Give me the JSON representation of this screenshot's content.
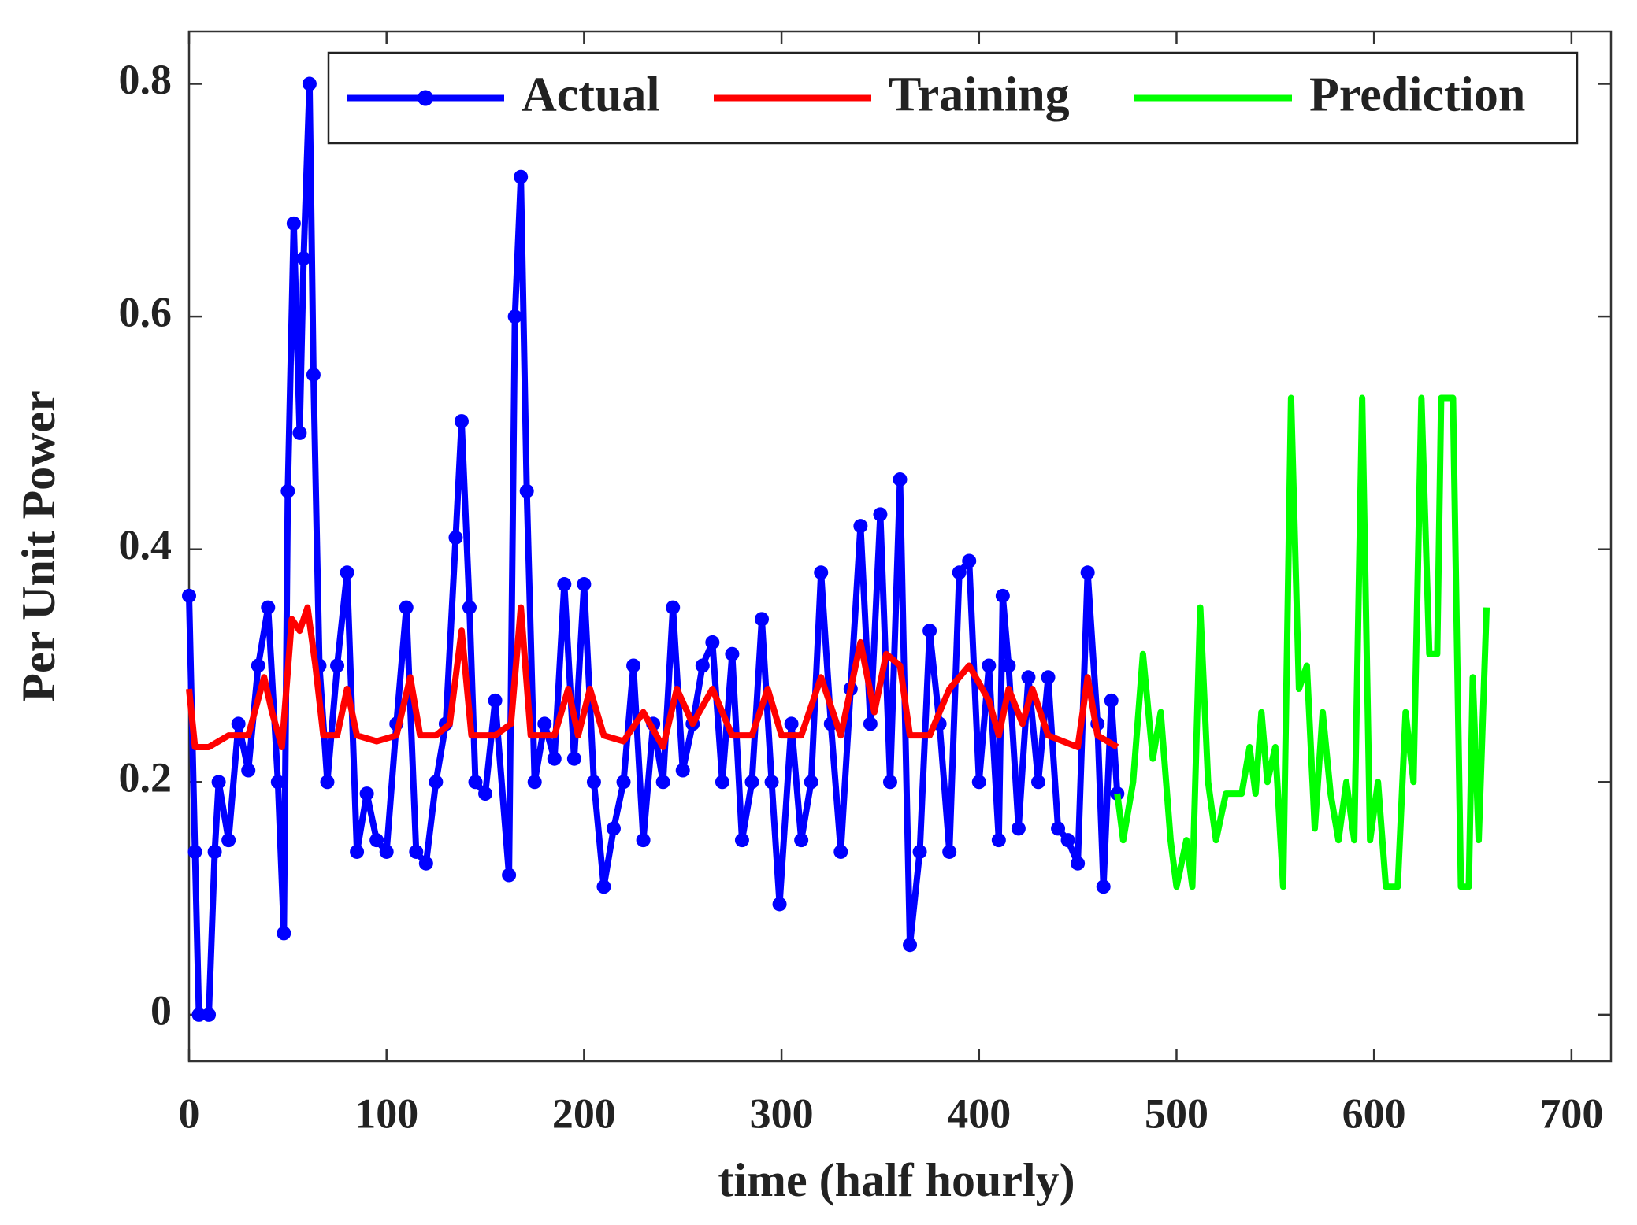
{
  "chart_data": {
    "type": "line",
    "xlabel": "time (half hourly)",
    "ylabel": "Per Unit Power",
    "xlim": [
      0,
      720
    ],
    "ylim": [
      -0.04,
      0.845
    ],
    "xticks": [
      0,
      100,
      200,
      300,
      400,
      500,
      600,
      700
    ],
    "yticks": [
      0,
      0.2,
      0.4,
      0.6,
      0.8
    ],
    "legend": "upper right",
    "series": [
      {
        "name": "Actual",
        "color": "#0000ff",
        "marker": "circle",
        "x": [
          0,
          3,
          5,
          10,
          13,
          15,
          20,
          25,
          30,
          35,
          40,
          45,
          48,
          50,
          53,
          56,
          58,
          61,
          63,
          66,
          70,
          75,
          80,
          85,
          90,
          95,
          100,
          105,
          110,
          115,
          120,
          125,
          130,
          135,
          138,
          142,
          145,
          150,
          155,
          162,
          165,
          168,
          171,
          175,
          180,
          185,
          190,
          195,
          200,
          205,
          210,
          215,
          220,
          225,
          230,
          235,
          240,
          245,
          250,
          255,
          260,
          265,
          270,
          275,
          280,
          285,
          290,
          295,
          299,
          305,
          310,
          315,
          320,
          325,
          330,
          335,
          340,
          345,
          350,
          355,
          360,
          365,
          370,
          375,
          380,
          385,
          390,
          395,
          400,
          405,
          410,
          412,
          415,
          420,
          425,
          430,
          435,
          440,
          445,
          450,
          455,
          460,
          463,
          467,
          470
        ],
        "values": [
          0.36,
          0.14,
          0.0,
          0.0,
          0.14,
          0.2,
          0.15,
          0.25,
          0.21,
          0.3,
          0.35,
          0.2,
          0.07,
          0.45,
          0.68,
          0.5,
          0.65,
          0.8,
          0.55,
          0.3,
          0.2,
          0.3,
          0.38,
          0.14,
          0.19,
          0.15,
          0.14,
          0.25,
          0.35,
          0.14,
          0.13,
          0.2,
          0.25,
          0.41,
          0.51,
          0.35,
          0.2,
          0.19,
          0.27,
          0.12,
          0.6,
          0.72,
          0.45,
          0.2,
          0.25,
          0.22,
          0.37,
          0.22,
          0.37,
          0.2,
          0.11,
          0.16,
          0.2,
          0.3,
          0.15,
          0.25,
          0.2,
          0.35,
          0.21,
          0.25,
          0.3,
          0.32,
          0.2,
          0.31,
          0.15,
          0.2,
          0.34,
          0.2,
          0.095,
          0.25,
          0.15,
          0.2,
          0.38,
          0.25,
          0.14,
          0.28,
          0.42,
          0.25,
          0.43,
          0.2,
          0.46,
          0.06,
          0.14,
          0.33,
          0.25,
          0.14,
          0.38,
          0.39,
          0.2,
          0.3,
          0.15,
          0.36,
          0.3,
          0.16,
          0.29,
          0.2,
          0.29,
          0.16,
          0.15,
          0.13,
          0.38,
          0.25,
          0.11,
          0.27,
          0.19
        ]
      },
      {
        "name": "Training",
        "color": "#ff0000",
        "x": [
          0,
          3,
          10,
          20,
          30,
          38,
          42,
          47,
          52,
          56,
          60,
          64,
          68,
          75,
          80,
          85,
          95,
          105,
          112,
          117,
          125,
          132,
          138,
          143,
          155,
          163,
          168,
          173,
          185,
          192,
          197,
          203,
          210,
          220,
          230,
          240,
          247,
          255,
          265,
          275,
          285,
          293,
          300,
          310,
          320,
          330,
          340,
          347,
          353,
          360,
          365,
          375,
          385,
          395,
          405,
          410,
          415,
          422,
          427,
          435,
          450,
          455,
          460,
          470
        ],
        "values": [
          0.28,
          0.23,
          0.23,
          0.24,
          0.24,
          0.29,
          0.26,
          0.23,
          0.34,
          0.33,
          0.35,
          0.3,
          0.24,
          0.24,
          0.28,
          0.24,
          0.235,
          0.24,
          0.29,
          0.24,
          0.24,
          0.25,
          0.33,
          0.24,
          0.24,
          0.25,
          0.35,
          0.24,
          0.24,
          0.28,
          0.24,
          0.28,
          0.24,
          0.235,
          0.26,
          0.23,
          0.28,
          0.25,
          0.28,
          0.24,
          0.24,
          0.28,
          0.24,
          0.24,
          0.29,
          0.24,
          0.32,
          0.26,
          0.31,
          0.3,
          0.24,
          0.24,
          0.28,
          0.3,
          0.27,
          0.24,
          0.28,
          0.25,
          0.28,
          0.24,
          0.23,
          0.29,
          0.24,
          0.23
        ]
      },
      {
        "name": "Prediction",
        "color": "#00ff00",
        "x": [
          470,
          473,
          478,
          483,
          488,
          492,
          497,
          500,
          505,
          508,
          512,
          516,
          520,
          525,
          533,
          537,
          540,
          543,
          546,
          550,
          554,
          558,
          562,
          566,
          570,
          574,
          578,
          582,
          586,
          590,
          594,
          598,
          602,
          606,
          612,
          616,
          620,
          624,
          628,
          632,
          634,
          640,
          644,
          648,
          650,
          653,
          657
        ],
        "values": [
          0.19,
          0.15,
          0.2,
          0.31,
          0.22,
          0.26,
          0.15,
          0.11,
          0.15,
          0.11,
          0.35,
          0.2,
          0.15,
          0.19,
          0.19,
          0.23,
          0.19,
          0.26,
          0.2,
          0.23,
          0.11,
          0.53,
          0.28,
          0.3,
          0.16,
          0.26,
          0.19,
          0.15,
          0.2,
          0.15,
          0.53,
          0.15,
          0.2,
          0.11,
          0.11,
          0.26,
          0.2,
          0.53,
          0.31,
          0.31,
          0.53,
          0.53,
          0.11,
          0.11,
          0.29,
          0.15,
          0.35
        ]
      }
    ]
  }
}
